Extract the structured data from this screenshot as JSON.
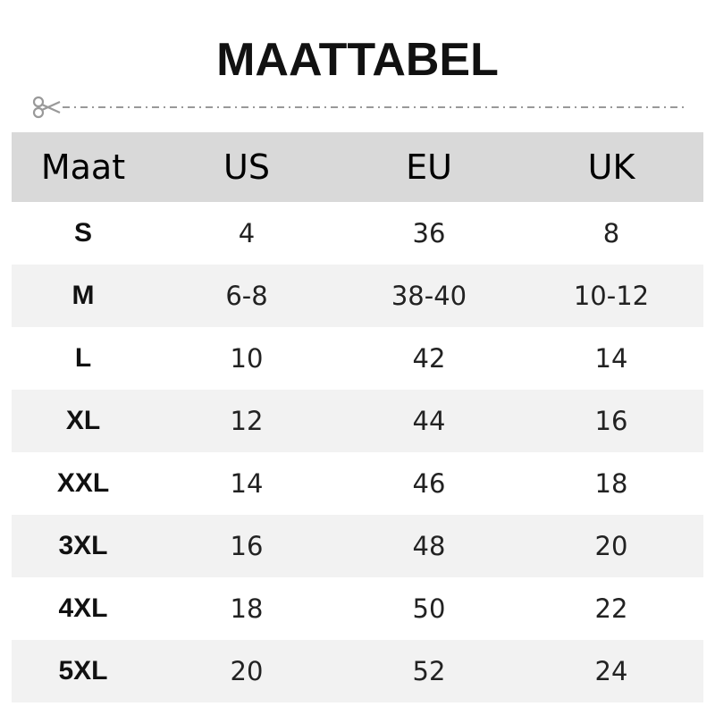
{
  "title": "MAATTABEL",
  "icons": {
    "cut": "scissors-icon"
  },
  "colors": {
    "header_bg": "#d9d9d9",
    "alt_row_bg": "#f2f2f2",
    "cutline": "#999999"
  },
  "table": {
    "headers": [
      "Maat",
      "US",
      "EU",
      "UK"
    ],
    "rows": [
      [
        "S",
        "4",
        "36",
        "8"
      ],
      [
        "M",
        "6-8",
        "38-40",
        "10-12"
      ],
      [
        "L",
        "10",
        "42",
        "14"
      ],
      [
        "XL",
        "12",
        "44",
        "16"
      ],
      [
        "XXL",
        "14",
        "46",
        "18"
      ],
      [
        "3XL",
        "16",
        "48",
        "20"
      ],
      [
        "4XL",
        "18",
        "50",
        "22"
      ],
      [
        "5XL",
        "20",
        "52",
        "24"
      ]
    ]
  }
}
